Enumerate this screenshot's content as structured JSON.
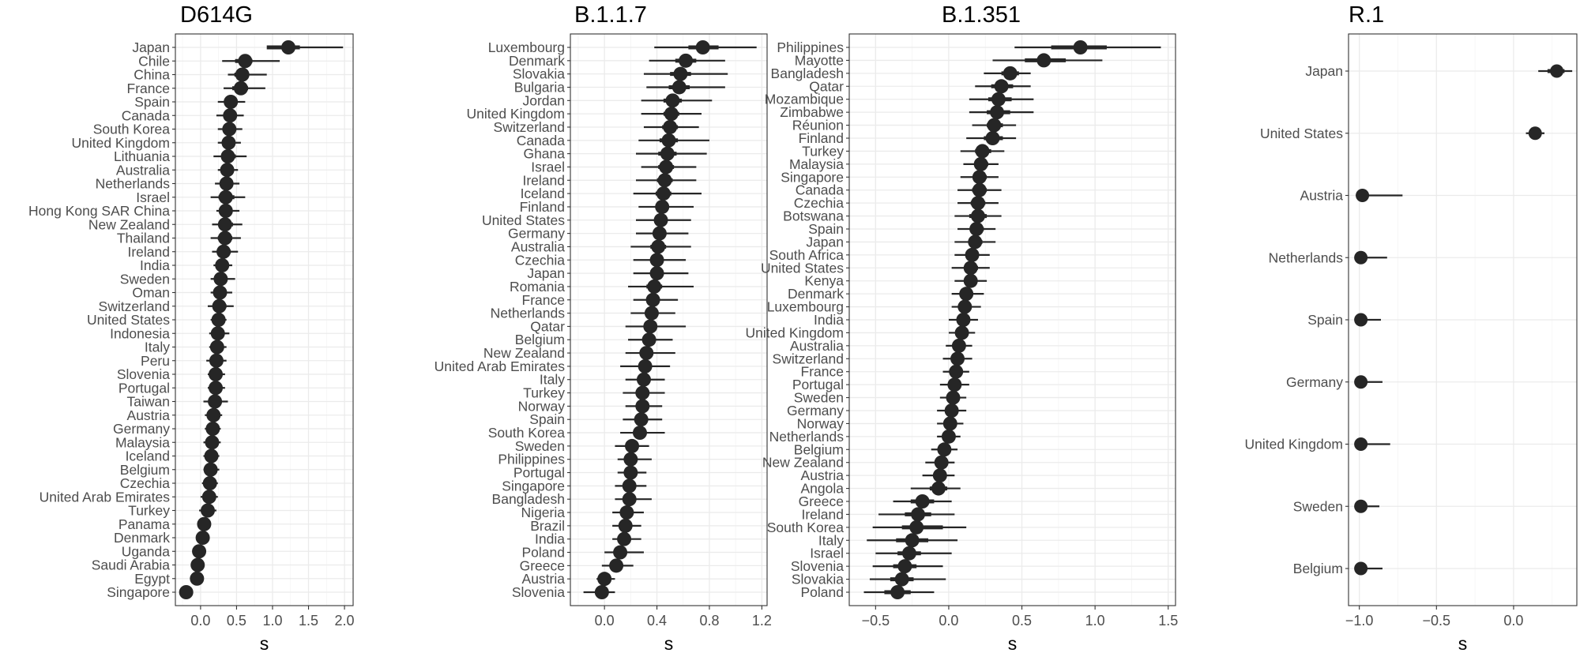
{
  "colors": {
    "point": "#262626",
    "grid": "#ebebeb",
    "axis_text": "#4d4d4d",
    "frame": "#333333"
  },
  "chart_data": [
    {
      "type": "scatter",
      "title": "D614G",
      "xlabel": "s",
      "xlim": [
        -0.35,
        2.12
      ],
      "xticks": [
        0.0,
        0.5,
        1.0,
        1.5,
        2.0
      ],
      "xtick_labels": [
        "0.0",
        "0.5",
        "1.0",
        "1.5",
        "2.0"
      ],
      "grid": true,
      "labels": [
        "Japan",
        "Chile",
        "China",
        "France",
        "Spain",
        "Canada",
        "South Korea",
        "United Kingdom",
        "Lithuania",
        "Australia",
        "Netherlands",
        "Israel",
        "Hong Kong SAR China",
        "New Zealand",
        "Thailand",
        "Ireland",
        "India",
        "Sweden",
        "Oman",
        "Switzerland",
        "United States",
        "Indonesia",
        "Italy",
        "Peru",
        "Slovenia",
        "Portugal",
        "Taiwan",
        "Austria",
        "Germany",
        "Malaysia",
        "Iceland",
        "Belgium",
        "Czechia",
        "United Arab Emirates",
        "Turkey",
        "Panama",
        "Denmark",
        "Uganda",
        "Saudi Arabia",
        "Egypt",
        "Singapore"
      ],
      "estimate": [
        1.22,
        0.62,
        0.58,
        0.56,
        0.42,
        0.41,
        0.4,
        0.39,
        0.38,
        0.37,
        0.36,
        0.35,
        0.35,
        0.34,
        0.34,
        0.32,
        0.3,
        0.28,
        0.27,
        0.26,
        0.25,
        0.24,
        0.23,
        0.22,
        0.21,
        0.21,
        0.2,
        0.18,
        0.17,
        0.16,
        0.15,
        0.14,
        0.13,
        0.12,
        0.1,
        0.05,
        0.03,
        -0.02,
        -0.04,
        -0.05,
        -0.2
      ],
      "lower": [
        0.98,
        0.3,
        0.38,
        0.32,
        0.24,
        0.22,
        0.24,
        0.24,
        0.18,
        0.24,
        0.2,
        0.14,
        0.22,
        0.16,
        0.14,
        0.16,
        0.18,
        0.14,
        0.14,
        0.1,
        0.14,
        0.12,
        0.12,
        0.08,
        0.1,
        0.1,
        0.04,
        0.06,
        0.06,
        0.04,
        0.04,
        0.04,
        0.02,
        0.0,
        -0.02,
        -0.04,
        -0.06,
        -0.1,
        -0.12,
        -0.12,
        -0.28
      ],
      "upper": [
        1.98,
        1.1,
        0.92,
        0.9,
        0.62,
        0.6,
        0.58,
        0.56,
        0.64,
        0.52,
        0.54,
        0.62,
        0.54,
        0.58,
        0.56,
        0.52,
        0.44,
        0.48,
        0.44,
        0.46,
        0.36,
        0.4,
        0.36,
        0.36,
        0.34,
        0.34,
        0.38,
        0.3,
        0.28,
        0.28,
        0.26,
        0.26,
        0.24,
        0.24,
        0.22,
        0.14,
        0.12,
        0.06,
        0.04,
        0.03,
        -0.12
      ],
      "inner": [
        [
          0.92,
          1.38
        ],
        [
          0.48,
          0.72
        ],
        [
          0.47,
          0.67
        ],
        [
          0.44,
          0.66
        ],
        [
          0.35,
          0.5
        ],
        [
          0.33,
          0.49
        ],
        [
          0.32,
          0.48
        ],
        [
          0.31,
          0.47
        ],
        [
          0.29,
          0.49
        ],
        [
          0.3,
          0.44
        ],
        [
          0.28,
          0.44
        ],
        [
          0.25,
          0.47
        ],
        [
          0.28,
          0.43
        ],
        [
          0.25,
          0.45
        ],
        [
          0.24,
          0.44
        ],
        [
          0.23,
          0.42
        ],
        [
          0.24,
          0.36
        ],
        [
          0.21,
          0.37
        ],
        [
          0.2,
          0.35
        ],
        [
          0.18,
          0.36
        ],
        [
          0.19,
          0.31
        ],
        [
          0.18,
          0.31
        ],
        [
          0.18,
          0.29
        ],
        [
          0.15,
          0.29
        ],
        [
          0.15,
          0.27
        ],
        [
          0.15,
          0.27
        ],
        [
          0.12,
          0.29
        ],
        [
          0.12,
          0.24
        ],
        [
          0.12,
          0.22
        ],
        [
          0.1,
          0.22
        ],
        [
          0.1,
          0.2
        ],
        [
          0.09,
          0.19
        ],
        [
          0.08,
          0.18
        ],
        [
          0.06,
          0.18
        ],
        [
          0.04,
          0.16
        ],
        [
          0.0,
          0.1
        ],
        [
          -0.02,
          0.08
        ],
        [
          -0.06,
          0.02
        ],
        [
          -0.08,
          0.0
        ],
        [
          -0.09,
          -0.01
        ],
        [
          -0.24,
          -0.16
        ]
      ]
    },
    {
      "type": "scatter",
      "title": "B.1.1.7",
      "xlabel": "s",
      "xlim": [
        -0.26,
        1.24
      ],
      "xticks": [
        0.0,
        0.4,
        0.8,
        1.2
      ],
      "xtick_labels": [
        "0.0",
        "0.4",
        "0.8",
        "1.2"
      ],
      "grid": true,
      "labels": [
        "Luxembourg",
        "Denmark",
        "Slovakia",
        "Bulgaria",
        "Jordan",
        "United Kingdom",
        "Switzerland",
        "Canada",
        "Ghana",
        "Israel",
        "Ireland",
        "Iceland",
        "Finland",
        "United States",
        "Germany",
        "Australia",
        "Czechia",
        "Japan",
        "Romania",
        "France",
        "Netherlands",
        "Qatar",
        "Belgium",
        "New Zealand",
        "United Arab Emirates",
        "Italy",
        "Turkey",
        "Norway",
        "Spain",
        "South Korea",
        "Sweden",
        "Philippines",
        "Portugal",
        "Singapore",
        "Bangladesh",
        "Nigeria",
        "Brazil",
        "India",
        "Poland",
        "Greece",
        "Austria",
        "Slovenia"
      ],
      "estimate": [
        0.75,
        0.62,
        0.58,
        0.57,
        0.52,
        0.51,
        0.5,
        0.49,
        0.48,
        0.47,
        0.46,
        0.45,
        0.44,
        0.43,
        0.42,
        0.41,
        0.4,
        0.4,
        0.38,
        0.37,
        0.36,
        0.35,
        0.34,
        0.32,
        0.31,
        0.3,
        0.29,
        0.29,
        0.28,
        0.27,
        0.21,
        0.2,
        0.2,
        0.19,
        0.19,
        0.17,
        0.16,
        0.15,
        0.12,
        0.09,
        0.0,
        -0.02
      ],
      "lower": [
        0.38,
        0.34,
        0.3,
        0.32,
        0.28,
        0.28,
        0.3,
        0.26,
        0.24,
        0.28,
        0.24,
        0.22,
        0.26,
        0.24,
        0.24,
        0.2,
        0.22,
        0.22,
        0.18,
        0.22,
        0.2,
        0.16,
        0.18,
        0.16,
        0.12,
        0.16,
        0.14,
        0.16,
        0.14,
        0.12,
        0.08,
        0.1,
        0.1,
        0.08,
        0.08,
        0.06,
        0.06,
        0.06,
        0.0,
        -0.02,
        -0.06,
        -0.16
      ],
      "upper": [
        1.16,
        0.92,
        0.94,
        0.92,
        0.82,
        0.74,
        0.72,
        0.8,
        0.78,
        0.7,
        0.7,
        0.74,
        0.68,
        0.66,
        0.64,
        0.66,
        0.62,
        0.64,
        0.68,
        0.56,
        0.54,
        0.62,
        0.52,
        0.54,
        0.5,
        0.46,
        0.46,
        0.44,
        0.44,
        0.46,
        0.34,
        0.36,
        0.32,
        0.32,
        0.36,
        0.3,
        0.28,
        0.28,
        0.3,
        0.22,
        0.08,
        0.08
      ],
      "inner": [
        [
          0.64,
          0.87
        ],
        [
          0.54,
          0.7
        ],
        [
          0.5,
          0.66
        ],
        [
          0.49,
          0.65
        ],
        [
          0.45,
          0.59
        ],
        [
          0.45,
          0.57
        ],
        [
          0.44,
          0.56
        ],
        [
          0.42,
          0.56
        ],
        [
          0.41,
          0.55
        ],
        [
          0.41,
          0.53
        ],
        [
          0.4,
          0.52
        ],
        [
          0.39,
          0.51
        ],
        [
          0.39,
          0.49
        ],
        [
          0.38,
          0.48
        ],
        [
          0.37,
          0.47
        ],
        [
          0.35,
          0.47
        ],
        [
          0.35,
          0.45
        ],
        [
          0.35,
          0.45
        ],
        [
          0.32,
          0.44
        ],
        [
          0.33,
          0.41
        ],
        [
          0.32,
          0.4
        ],
        [
          0.3,
          0.4
        ],
        [
          0.3,
          0.38
        ],
        [
          0.28,
          0.36
        ],
        [
          0.26,
          0.36
        ],
        [
          0.26,
          0.34
        ],
        [
          0.25,
          0.33
        ],
        [
          0.25,
          0.33
        ],
        [
          0.24,
          0.32
        ],
        [
          0.23,
          0.31
        ],
        [
          0.18,
          0.24
        ],
        [
          0.17,
          0.23
        ],
        [
          0.17,
          0.23
        ],
        [
          0.16,
          0.22
        ],
        [
          0.16,
          0.22
        ],
        [
          0.14,
          0.2
        ],
        [
          0.13,
          0.19
        ],
        [
          0.12,
          0.18
        ],
        [
          0.09,
          0.15
        ],
        [
          0.06,
          0.12
        ],
        [
          -0.02,
          0.02
        ],
        [
          -0.05,
          0.01
        ]
      ]
    },
    {
      "type": "scatter",
      "title": "B.1.351",
      "xlabel": "s",
      "xlim": [
        -0.68,
        1.55
      ],
      "xticks": [
        -0.5,
        0.0,
        0.5,
        1.0,
        1.5
      ],
      "xtick_labels": [
        "−0.5",
        "0.0",
        "0.5",
        "1.0",
        "1.5"
      ],
      "grid": true,
      "labels": [
        "Philippines",
        "Mayotte",
        "Bangladesh",
        "Qatar",
        "Mozambique",
        "Zimbabwe",
        "Réunion",
        "Finland",
        "Turkey",
        "Malaysia",
        "Singapore",
        "Canada",
        "Czechia",
        "Botswana",
        "Spain",
        "Japan",
        "South Africa",
        "United States",
        "Kenya",
        "Denmark",
        "Luxembourg",
        "India",
        "United Kingdom",
        "Australia",
        "Switzerland",
        "France",
        "Portugal",
        "Sweden",
        "Germany",
        "Norway",
        "Netherlands",
        "Belgium",
        "New Zealand",
        "Austria",
        "Angola",
        "Greece",
        "Ireland",
        "South Korea",
        "Italy",
        "Israel",
        "Slovenia",
        "Slovakia",
        "Poland"
      ],
      "estimate": [
        0.9,
        0.65,
        0.42,
        0.36,
        0.34,
        0.33,
        0.31,
        0.3,
        0.23,
        0.22,
        0.21,
        0.21,
        0.2,
        0.2,
        0.19,
        0.18,
        0.16,
        0.15,
        0.15,
        0.12,
        0.11,
        0.1,
        0.09,
        0.07,
        0.06,
        0.05,
        0.04,
        0.03,
        0.02,
        0.01,
        0.0,
        -0.03,
        -0.05,
        -0.06,
        -0.07,
        -0.18,
        -0.21,
        -0.22,
        -0.25,
        -0.27,
        -0.3,
        -0.32,
        -0.35
      ],
      "lower": [
        0.45,
        0.3,
        0.24,
        0.18,
        0.14,
        0.14,
        0.16,
        0.12,
        0.08,
        0.1,
        0.08,
        0.06,
        0.06,
        0.04,
        0.06,
        0.04,
        0.04,
        0.02,
        0.04,
        0.02,
        0.02,
        0.0,
        0.0,
        -0.02,
        -0.04,
        -0.04,
        -0.06,
        -0.06,
        -0.08,
        -0.08,
        -0.08,
        -0.12,
        -0.16,
        -0.18,
        -0.26,
        -0.38,
        -0.48,
        -0.52,
        -0.56,
        -0.5,
        -0.52,
        -0.54,
        -0.58
      ],
      "upper": [
        1.45,
        1.05,
        0.56,
        0.56,
        0.58,
        0.58,
        0.46,
        0.46,
        0.38,
        0.34,
        0.34,
        0.36,
        0.34,
        0.36,
        0.32,
        0.32,
        0.28,
        0.28,
        0.26,
        0.24,
        0.22,
        0.2,
        0.18,
        0.16,
        0.16,
        0.14,
        0.14,
        0.12,
        0.12,
        0.1,
        0.08,
        0.06,
        0.04,
        0.04,
        0.08,
        0.02,
        0.04,
        0.12,
        0.06,
        0.02,
        -0.04,
        -0.02,
        -0.1
      ],
      "inner": [
        [
          0.7,
          1.08
        ],
        [
          0.52,
          0.8
        ],
        [
          0.36,
          0.48
        ],
        [
          0.29,
          0.44
        ],
        [
          0.27,
          0.43
        ],
        [
          0.26,
          0.42
        ],
        [
          0.26,
          0.37
        ],
        [
          0.24,
          0.37
        ],
        [
          0.18,
          0.29
        ],
        [
          0.18,
          0.27
        ],
        [
          0.17,
          0.26
        ],
        [
          0.16,
          0.26
        ],
        [
          0.15,
          0.25
        ],
        [
          0.14,
          0.26
        ],
        [
          0.15,
          0.24
        ],
        [
          0.14,
          0.23
        ],
        [
          0.12,
          0.2
        ],
        [
          0.11,
          0.2
        ],
        [
          0.12,
          0.19
        ],
        [
          0.09,
          0.16
        ],
        [
          0.08,
          0.14
        ],
        [
          0.07,
          0.13
        ],
        [
          0.06,
          0.12
        ],
        [
          0.04,
          0.1
        ],
        [
          0.03,
          0.1
        ],
        [
          0.02,
          0.08
        ],
        [
          0.01,
          0.07
        ],
        [
          0.0,
          0.06
        ],
        [
          -0.01,
          0.05
        ],
        [
          -0.02,
          0.04
        ],
        [
          -0.03,
          0.03
        ],
        [
          -0.06,
          0.0
        ],
        [
          -0.09,
          -0.01
        ],
        [
          -0.1,
          -0.02
        ],
        [
          -0.13,
          -0.01
        ],
        [
          -0.26,
          -0.1
        ],
        [
          -0.3,
          -0.12
        ],
        [
          -0.32,
          -0.04
        ],
        [
          -0.36,
          -0.14
        ],
        [
          -0.35,
          -0.19
        ],
        [
          -0.38,
          -0.22
        ],
        [
          -0.4,
          -0.24
        ],
        [
          -0.44,
          -0.26
        ]
      ]
    },
    {
      "type": "scatter",
      "title": "R.1",
      "xlabel": "s",
      "xlim": [
        -1.07,
        0.41
      ],
      "xticks": [
        -1.0,
        -0.5,
        0.0
      ],
      "xtick_labels": [
        "−1.0",
        "−0.5",
        "0.0"
      ],
      "grid": true,
      "labels": [
        "Japan",
        "United States",
        "Austria",
        "Netherlands",
        "Spain",
        "Germany",
        "United Kingdom",
        "Sweden",
        "Belgium"
      ],
      "estimate": [
        0.28,
        0.14,
        -0.98,
        -0.99,
        -0.99,
        -0.99,
        -0.99,
        -0.99,
        -0.99
      ],
      "lower": [
        0.16,
        0.08,
        -1.0,
        -1.0,
        -1.0,
        -1.0,
        -1.0,
        -1.0,
        -1.0
      ],
      "upper": [
        0.38,
        0.2,
        -0.72,
        -0.82,
        -0.86,
        -0.85,
        -0.8,
        -0.87,
        -0.85
      ],
      "inner": [
        [
          0.22,
          0.33
        ],
        [
          0.1,
          0.17
        ],
        [
          -0.99,
          -0.96
        ],
        [
          -0.99,
          -0.97
        ],
        [
          -0.99,
          -0.98
        ],
        [
          -0.99,
          -0.98
        ],
        [
          -0.99,
          -0.97
        ],
        [
          -0.99,
          -0.98
        ],
        [
          -0.99,
          -0.98
        ]
      ]
    }
  ]
}
